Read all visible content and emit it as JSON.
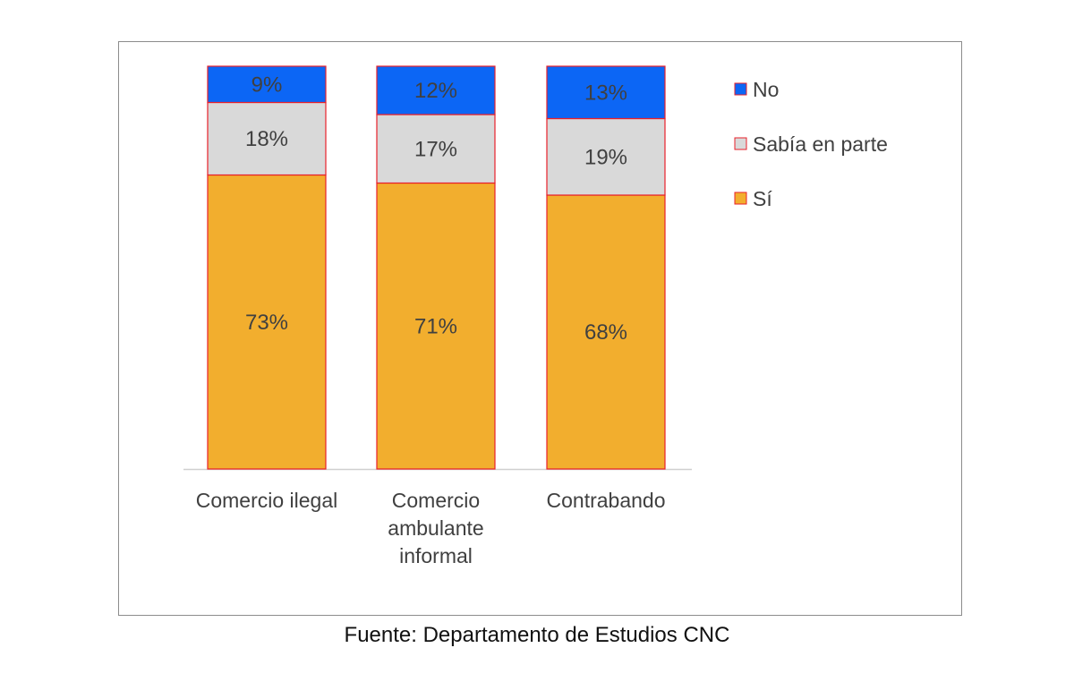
{
  "chart_data": {
    "type": "bar",
    "stacked": true,
    "categories": [
      "Comercio ilegal",
      "Comercio ambulante informal",
      "Contrabando"
    ],
    "category_lines": [
      [
        "Comercio ilegal"
      ],
      [
        "Comercio",
        "ambulante",
        "informal"
      ],
      [
        "Contrabando"
      ]
    ],
    "series": [
      {
        "name": "Sí",
        "values": [
          73,
          71,
          68
        ],
        "color": "#f2ae2e"
      },
      {
        "name": "Sabía en parte",
        "values": [
          18,
          17,
          19
        ],
        "color": "#d9d9d9"
      },
      {
        "name": "No",
        "values": [
          9,
          12,
          13
        ],
        "color": "#0c66f5"
      }
    ],
    "data_labels": [
      [
        "73%",
        "71%",
        "68%"
      ],
      [
        "18%",
        "17%",
        "19%"
      ],
      [
        "9%",
        "12%",
        "13%"
      ]
    ],
    "legend_order": [
      "No",
      "Sabía en parte",
      "Sí"
    ],
    "legend_position": "top-right",
    "ylim": [
      0,
      100
    ],
    "bar_outline_color": "#e8202a",
    "title": "",
    "xlabel": "",
    "ylabel": ""
  },
  "source": "Fuente: Departamento de Estudios CNC"
}
